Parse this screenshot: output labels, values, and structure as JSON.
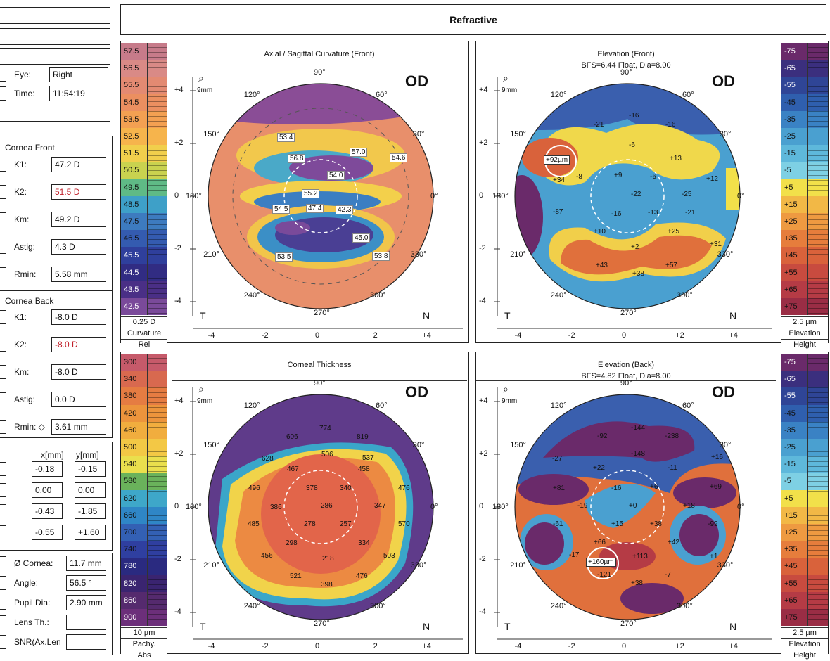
{
  "header": {
    "title": "Refractive"
  },
  "info": {
    "eye_label": "Eye:",
    "eye_value": "Right",
    "time_label": "Time:",
    "time_value": "11:54:19"
  },
  "cornea_front": {
    "title": "Cornea Front",
    "rows": [
      {
        "label": "K1:",
        "value": "47.2 D"
      },
      {
        "label": "K2:",
        "value": "51.5 D"
      },
      {
        "label": "Km:",
        "value": "49.2 D"
      },
      {
        "label": "Astig:",
        "value": "4.3 D"
      },
      {
        "label": "Rmin:",
        "value": "5.58 mm"
      }
    ]
  },
  "cornea_back": {
    "title": "Cornea Back",
    "rows": [
      {
        "label": "K1:",
        "value": "-8.0 D"
      },
      {
        "label": "K2:",
        "value": "-8.0 D"
      },
      {
        "label": "Km:",
        "value": "-8.0 D"
      },
      {
        "label": "Astig:",
        "value": "0.0 D"
      },
      {
        "label": "Rmin: ◇",
        "value": "3.61 mm"
      }
    ]
  },
  "coords": {
    "x_header": "x[mm]",
    "y_header": "y[mm]",
    "rows": [
      {
        "x": "-0.18",
        "y": "-0.15"
      },
      {
        "x": "0.00",
        "y": "0.00"
      },
      {
        "x": "-0.43",
        "y": "-1.85"
      },
      {
        "x": "-0.55",
        "y": "+1.60"
      }
    ]
  },
  "misc": {
    "rows": [
      {
        "label": "Ø Cornea:",
        "value": "11.7 mm"
      },
      {
        "label": "Angle:",
        "value": "56.5 °"
      },
      {
        "label": "Pupil Dia:",
        "value": "2.90 mm"
      },
      {
        "label": "Lens Th.:",
        "value": ""
      },
      {
        "label": "SNR(Ax.Len",
        "value": ""
      }
    ]
  },
  "common": {
    "od": "OD",
    "zoom": "9mm",
    "t": "T",
    "n": "N",
    "deg90": "90°",
    "deg270": "270°",
    "deg0": "0°",
    "deg180": "180°",
    "deg60": "60°",
    "deg120": "120°",
    "deg150": "150°",
    "deg30": "30°",
    "deg210": "210°",
    "deg240": "240°",
    "deg300": "300°",
    "deg330": "330°",
    "x_ticks": [
      "-4",
      "-2",
      "0",
      "+2",
      "+4"
    ],
    "y_ticks": [
      "+4",
      "+2",
      "0",
      "-2",
      "-4"
    ]
  },
  "axial": {
    "title": "Axial / Sagittal Curvature (Front)",
    "scale": [
      "57.5",
      "56.5",
      "55.5",
      "54.5",
      "53.5",
      "52.5",
      "51.5",
      "50.5",
      "49.5",
      "48.5",
      "47.5",
      "46.5",
      "45.5",
      "44.5",
      "43.5",
      "42.5"
    ],
    "scale_foot": [
      "0.25 D",
      "Curvature",
      "Rel"
    ],
    "labels": [
      "53.4",
      "56.8",
      "57.0",
      "54.6",
      "54.0",
      "55.2",
      "54.5",
      "47.4",
      "42.3",
      "45.0",
      "53.5",
      "53.8"
    ]
  },
  "elev_front": {
    "title": "Elevation (Front)",
    "subtitle": "BFS=6.44 Float, Dia=8.00",
    "scale": [
      "-75",
      "-65",
      "-55",
      "-45",
      "-35",
      "-25",
      "-15",
      "-5",
      "+5",
      "+15",
      "+25",
      "+35",
      "+45",
      "+55",
      "+65",
      "+75"
    ],
    "scale_foot": [
      "2.5 µm",
      "Elevation",
      "Height"
    ],
    "marker": "+92µm",
    "labels": [
      "-16",
      "-21",
      "-16",
      "-6",
      "+13",
      "+12",
      "+34",
      "-8",
      "+9",
      "-6",
      "-22",
      "-25",
      "-16",
      "-13",
      "-21",
      "+10",
      "+25",
      "+31",
      "-87",
      "+43",
      "+38",
      "+57",
      "+2"
    ]
  },
  "thickness": {
    "title": "Corneal Thickness",
    "scale": [
      "300",
      "340",
      "380",
      "420",
      "460",
      "500",
      "540",
      "580",
      "620",
      "660",
      "700",
      "740",
      "780",
      "820",
      "860",
      "900"
    ],
    "scale_foot": [
      "10 µm",
      "Pachy.",
      "Abs"
    ],
    "labels": [
      "774",
      "819",
      "606",
      "506",
      "537",
      "628",
      "467",
      "458",
      "378",
      "340",
      "476",
      "496",
      "386",
      "286",
      "347",
      "485",
      "278",
      "257",
      "570",
      "298",
      "334",
      "218",
      "456",
      "503",
      "521",
      "476",
      "398"
    ]
  },
  "elev_back": {
    "title": "Elevation (Back)",
    "subtitle": "BFS=4.82 Float, Dia=8.00",
    "scale": [
      "-75",
      "-65",
      "-55",
      "-45",
      "-35",
      "-25",
      "-15",
      "-5",
      "+5",
      "+15",
      "+25",
      "+35",
      "+45",
      "+55",
      "+65",
      "+75"
    ],
    "scale_foot": [
      "2.5 µm",
      "Elevation",
      "Height"
    ],
    "marker": "+160µm",
    "labels": [
      "-144",
      "-92",
      "-238",
      "-148",
      "-27",
      "+22",
      "-11",
      "+16",
      "+81",
      "-16",
      "+6",
      "+69",
      "-19",
      "+0",
      "+18",
      "-61",
      "+15",
      "+38",
      "-99",
      "+66",
      "+42",
      "-17",
      "+113",
      "+1",
      "-121",
      "+38",
      "-7"
    ]
  },
  "colors": {
    "axial_scale": [
      "#c77b8a",
      "#d98a86",
      "#e38a72",
      "#eb8f60",
      "#f3a052",
      "#f6b44c",
      "#f1cf4c",
      "#c9d24f",
      "#5fba86",
      "#3ea0c8",
      "#3d7bbf",
      "#345bb0",
      "#2f3f9c",
      "#312c83",
      "#4a2f86",
      "#7a4a9a"
    ],
    "thick_scale": [
      "#c65a6a",
      "#d8694f",
      "#e57c42",
      "#ec943c",
      "#f1ad3e",
      "#f3c845",
      "#eadf4d",
      "#6ab25b",
      "#3ea7c9",
      "#2f86c6",
      "#3360b4",
      "#2f3fa0",
      "#2a2a80",
      "#3a2470",
      "#552a6e",
      "#6c2f7a"
    ],
    "elev_scale": [
      "#6a2a6a",
      "#3b2f7e",
      "#2f4596",
      "#2f5fae",
      "#3a82c4",
      "#4aa0d0",
      "#5eb8db",
      "#7ed0e4",
      "#f2e04a",
      "#f2b846",
      "#ee9a41",
      "#e67d3c",
      "#d9623b",
      "#c84b3f",
      "#b53b45",
      "#9a2d45"
    ]
  }
}
